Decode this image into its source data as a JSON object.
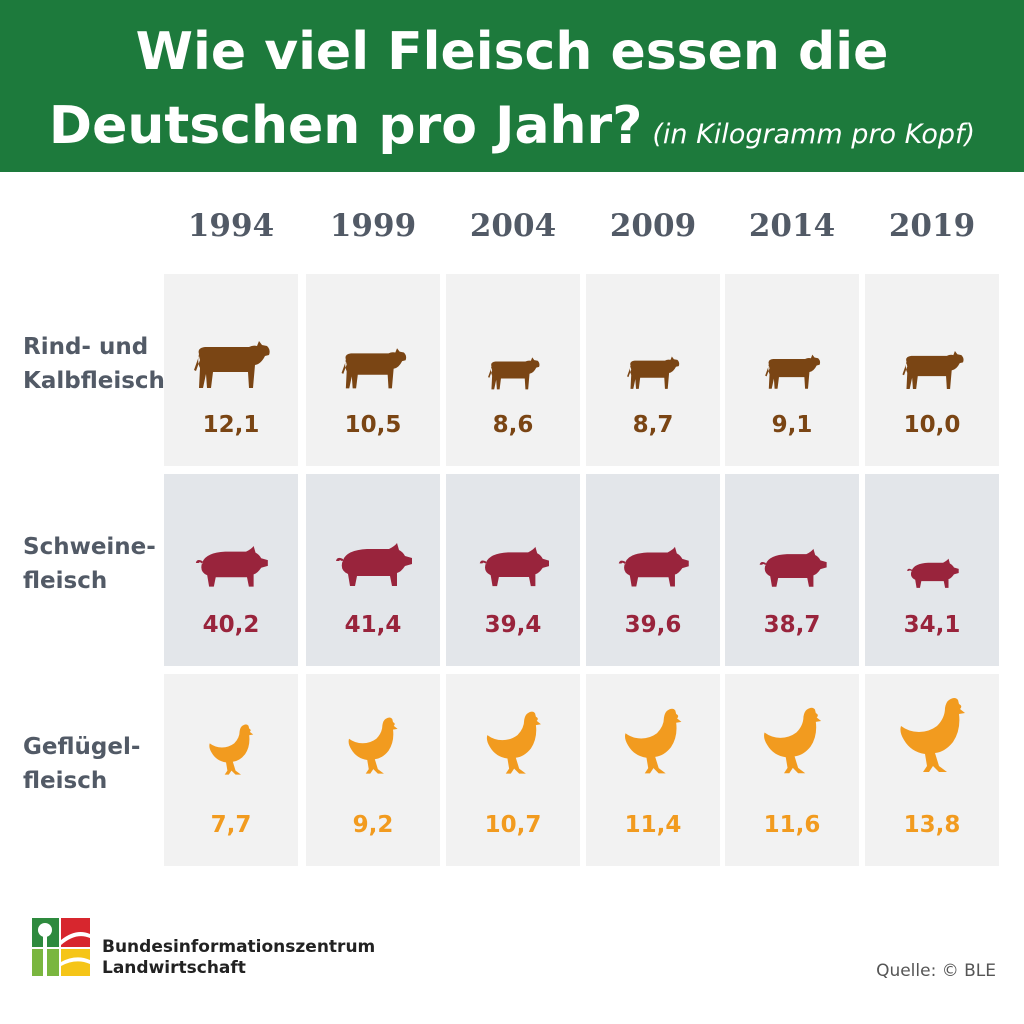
{
  "header": {
    "title_line1": "Wie viel Fleisch essen die",
    "title_line2": "Deutschen pro Jahr?",
    "unit": "(in Kilogramm pro Kopf)"
  },
  "chart_data": {
    "type": "table",
    "columns": [
      "1994",
      "1999",
      "2004",
      "2009",
      "2014",
      "2019"
    ],
    "rows": [
      {
        "label_line1": "Rind- und",
        "label_line2": "Kalbfleisch",
        "icon": "cow-icon",
        "color": "#7a4514",
        "values": [
          "12,1",
          "10,5",
          "8,6",
          "8,7",
          "9,1",
          "10,0"
        ]
      },
      {
        "label_line1": "Schweine-",
        "label_line2": "fleisch",
        "icon": "pig-icon",
        "color": "#99243c",
        "values": [
          "40,2",
          "41,4",
          "39,4",
          "39,6",
          "38,7",
          "34,1"
        ]
      },
      {
        "label_line1": "Geflügel-",
        "label_line2": "fleisch",
        "icon": "chicken-icon",
        "color": "#f29b1f",
        "values": [
          "7,7",
          "9,2",
          "10,7",
          "11,4",
          "11,6",
          "13,8"
        ]
      }
    ]
  },
  "footer": {
    "org_line1": "Bundesinformationszentrum",
    "org_line2": "Landwirtschaft",
    "source": "Quelle: © BLE",
    "logo_icon": "bzl-logo-icon"
  }
}
